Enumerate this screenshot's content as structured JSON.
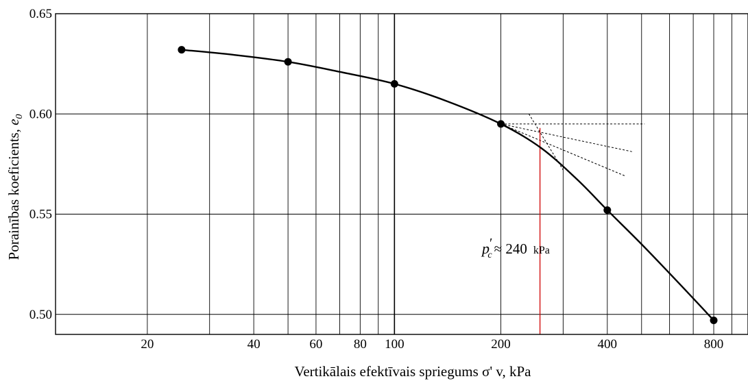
{
  "chart_data": {
    "type": "line",
    "xscale": "log",
    "xlabel": "Vertikālais efektīvais spriegums σ' v, kPa",
    "ylabel_main": "Porainības koeficients, ",
    "ylabel_symbol": "e",
    "ylabel_sub": "0",
    "xlim": [
      11,
      1000
    ],
    "ylim": [
      0.49,
      0.65
    ],
    "grid": true,
    "x_ticks": [
      {
        "value": 20,
        "label": "20"
      },
      {
        "value": 40,
        "label": "40"
      },
      {
        "value": 60,
        "label": "60"
      },
      {
        "value": 80,
        "label": "80"
      },
      {
        "value": 100,
        "label": "100"
      },
      {
        "value": 200,
        "label": "200"
      },
      {
        "value": 400,
        "label": "400"
      },
      {
        "value": 800,
        "label": "800"
      }
    ],
    "y_ticks": [
      {
        "value": 0.5,
        "label": "0.50"
      },
      {
        "value": 0.55,
        "label": "0.55"
      },
      {
        "value": 0.6,
        "label": "0.60"
      },
      {
        "value": 0.65,
        "label": "0.65"
      }
    ],
    "x_gridlines": [
      20,
      30,
      40,
      50,
      60,
      70,
      80,
      90,
      100,
      200,
      300,
      400,
      500,
      600,
      700,
      800,
      900
    ],
    "series": [
      {
        "points": [
          {
            "x": 25,
            "y": 0.632
          },
          {
            "x": 50,
            "y": 0.626
          },
          {
            "x": 100,
            "y": 0.615
          },
          {
            "x": 200,
            "y": 0.595
          },
          {
            "x": 400,
            "y": 0.552
          },
          {
            "x": 800,
            "y": 0.497
          }
        ],
        "curve": [
          [
            25,
            0.632
          ],
          [
            35,
            0.6295
          ],
          [
            50,
            0.626
          ],
          [
            70,
            0.621
          ],
          [
            100,
            0.615
          ],
          [
            140,
            0.6065
          ],
          [
            200,
            0.595
          ],
          [
            260,
            0.583
          ],
          [
            330,
            0.567
          ],
          [
            400,
            0.552
          ],
          [
            500,
            0.535
          ],
          [
            650,
            0.514
          ],
          [
            800,
            0.497
          ]
        ]
      }
    ],
    "construction_lines": [
      {
        "from": [
          200,
          0.595
        ],
        "to": [
          510,
          0.595
        ]
      },
      {
        "from": [
          200,
          0.595
        ],
        "to": [
          475,
          0.581
        ]
      },
      {
        "from": [
          200,
          0.595
        ],
        "to": [
          450,
          0.569
        ]
      },
      {
        "from": [
          240,
          0.6
        ],
        "to": [
          300,
          0.572
        ]
      }
    ],
    "marker": {
      "x": 258,
      "y_from": 0.49,
      "y_to": 0.593,
      "color": "#d00000"
    },
    "annotation": {
      "symbol": "p",
      "prime": "′",
      "sub": "c",
      "text": "≈ 240",
      "unit": "kPa"
    },
    "colors": {
      "line": "#000000",
      "grid": "#000000",
      "marker": "#d00000"
    }
  }
}
